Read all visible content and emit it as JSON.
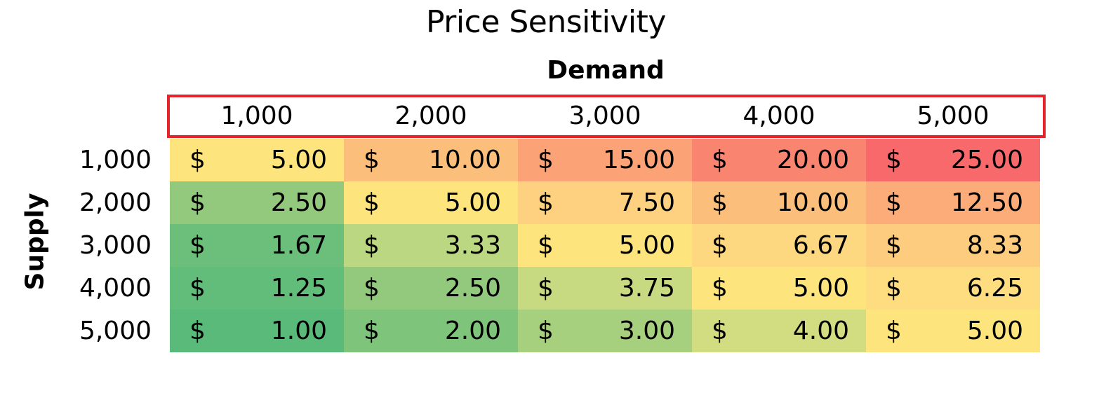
{
  "chart_data": {
    "type": "heatmap",
    "title": "Price Sensitivity",
    "xlabel": "Demand",
    "ylabel": "Supply",
    "currency_symbol": "$",
    "columns": [
      "1,000",
      "2,000",
      "3,000",
      "4,000",
      "5,000"
    ],
    "rows": [
      "1,000",
      "2,000",
      "3,000",
      "4,000",
      "5,000"
    ],
    "values": [
      [
        "5.00",
        "10.00",
        "15.00",
        "20.00",
        "25.00"
      ],
      [
        "2.50",
        "5.00",
        "7.50",
        "10.00",
        "12.50"
      ],
      [
        "1.67",
        "3.33",
        "5.00",
        "6.67",
        "8.33"
      ],
      [
        "1.25",
        "2.50",
        "3.75",
        "5.00",
        "6.25"
      ],
      [
        "1.00",
        "2.00",
        "3.00",
        "4.00",
        "5.00"
      ]
    ],
    "colors": [
      [
        "#fee47c",
        "#fcbf7b",
        "#fba276",
        "#f98570",
        "#f8696b"
      ],
      [
        "#92c97c",
        "#fee47c",
        "#fdd17f",
        "#fcbf7b",
        "#fbac78"
      ],
      [
        "#6bbf7a",
        "#bcd781",
        "#fee47c",
        "#fed880",
        "#fdcc7f"
      ],
      [
        "#62bc7a",
        "#92c97c",
        "#c8da81",
        "#fee47c",
        "#fedc80"
      ],
      [
        "#5aba79",
        "#7ec47b",
        "#a7d07e",
        "#d2dd81",
        "#fee47c"
      ]
    ],
    "header_border_color": "#e3242b"
  }
}
